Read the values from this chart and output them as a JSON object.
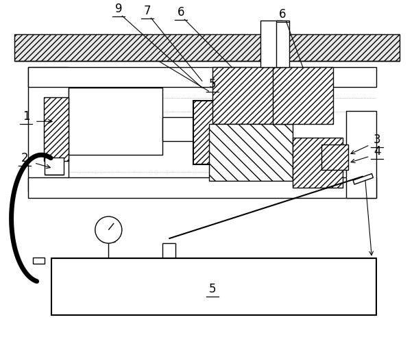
{
  "bg_color": "#ffffff",
  "line_color": "#000000",
  "fig_width": 6.04,
  "fig_height": 5.11,
  "dpi": 100
}
